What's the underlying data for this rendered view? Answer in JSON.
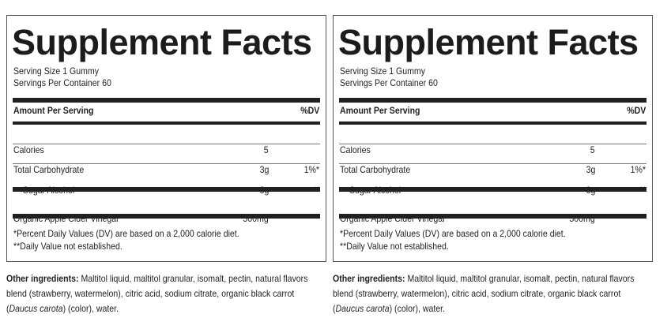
{
  "panels": [
    {
      "title": "Supplement Facts",
      "serving_size": "Serving Size 1 Gummy",
      "servings_per_container": "Servings Per Container 60",
      "header": {
        "amount": "Amount Per Serving",
        "dv": "%DV"
      },
      "rows": [
        {
          "name": "Calories",
          "amount": "5",
          "dv": ""
        },
        {
          "name": "Total Carbohydrate",
          "amount": "3g",
          "dv": "1%*"
        },
        {
          "name": "Sugar Alcohol",
          "amount": "3g",
          "dv": "**"
        },
        {
          "name": "Organic Apple Cider Vinegar",
          "amount": "500mg",
          "dv": "**"
        }
      ],
      "footnote1": "*Percent Daily Values (DV) are based on a 2,000 calorie diet.",
      "footnote2": "**Daily Value not established.",
      "other_label": "Other ingredients:",
      "other_text1": " Maltitol liquid, maltitol granular, isomalt, pectin, natural flavors blend (strawberry, watermelon), citric acid, sodium citrate, organic black carrot (",
      "other_italic": "Daucus carota",
      "other_text2": ") (color), water."
    },
    {
      "title": "Supplement Facts",
      "serving_size": "Serving Size 1 Gummy",
      "servings_per_container": "Servings Per Container 60",
      "header": {
        "amount": "Amount Per Serving",
        "dv": "%DV"
      },
      "rows": [
        {
          "name": "Calories",
          "amount": "5",
          "dv": ""
        },
        {
          "name": "Total Carbohydrate",
          "amount": "3g",
          "dv": "1%*"
        },
        {
          "name": "Sugar Alcohol",
          "amount": "3g",
          "dv": "**"
        },
        {
          "name": "Organic Apple Cider Vinegar",
          "amount": "500mg",
          "dv": "**"
        }
      ],
      "footnote1": "*Percent Daily Values (DV) are based on a 2,000 calorie diet.",
      "footnote2": "**Daily Value not established.",
      "other_label": "Other ingredients:",
      "other_text1": " Maltitol liquid, maltitol granular, isomalt, pectin, natural flavors blend (strawberry, watermelon), citric acid, sodium citrate, organic black carrot (",
      "other_italic": "Daucus carota",
      "other_text2": ") (color), water."
    }
  ]
}
